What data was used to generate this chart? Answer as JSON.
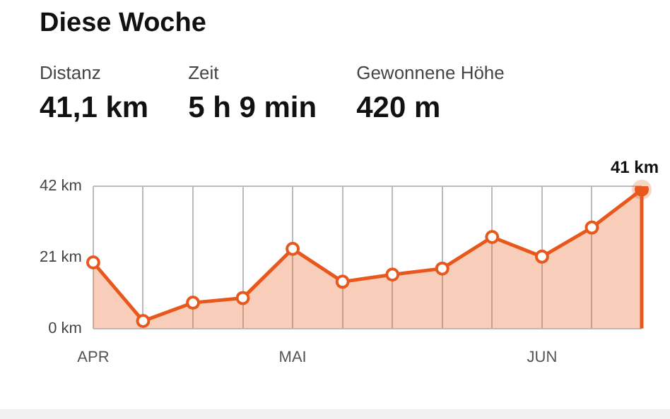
{
  "chart_data": {
    "type": "area",
    "title": "Diese Woche",
    "annotations": [
      "Distanz",
      "41,1 km",
      "Zeit",
      "5 h 9 min",
      "Gewonnene Höhe",
      "420 m"
    ],
    "categories": [
      "APR",
      null,
      null,
      null,
      "MAI",
      null,
      null,
      null,
      null,
      "JUN",
      null,
      null
    ],
    "series": [
      {
        "color": "#e8581c",
        "values": [
          19.5,
          2.2,
          7.6,
          9.0,
          23.5,
          13.8,
          15.9,
          17.7,
          27.0,
          21.2,
          29.8,
          41
        ],
        "value_labels": [
          null,
          null,
          null,
          null,
          null,
          null,
          null,
          null,
          null,
          null,
          null,
          "41 km"
        ]
      }
    ],
    "ylim": [
      0,
      42
    ],
    "yticks": [
      {
        "value": 0,
        "label": "0 km"
      },
      {
        "value": 21,
        "label": "21 km"
      },
      {
        "value": 42,
        "label": "42 km"
      }
    ],
    "grid": "x",
    "marker": "circle",
    "legend": false
  }
}
